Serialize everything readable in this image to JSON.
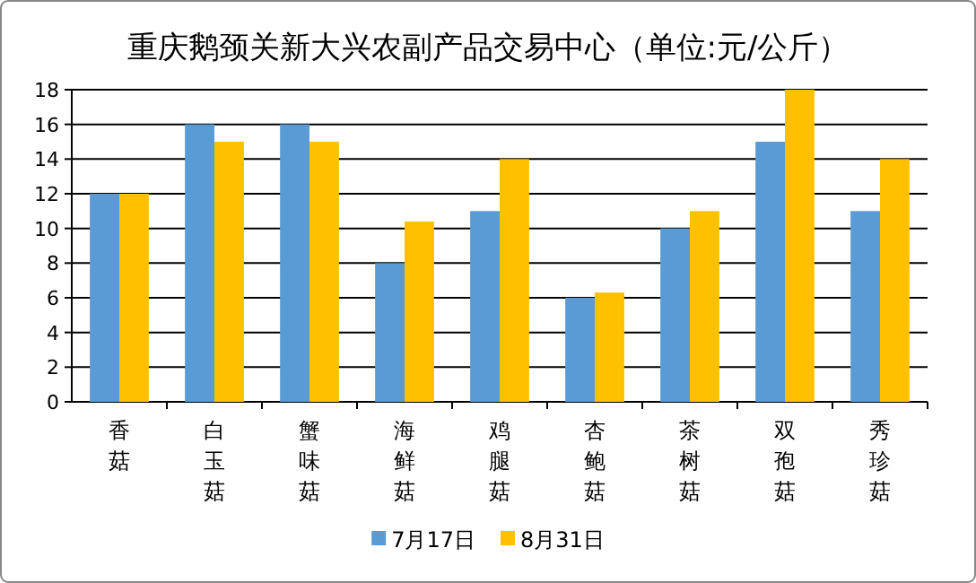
{
  "chart_data": {
    "type": "bar",
    "title": "重庆鹅颈关新大兴农副产品交易中心（单位:元/公斤）",
    "categories": [
      "香菇",
      "白玉菇",
      "蟹味菇",
      "海鲜菇",
      "鸡腿菇",
      "杏鲍菇",
      "茶树菇",
      "双孢菇",
      "秀珍菇"
    ],
    "series": [
      {
        "name": "7月17日",
        "color": "#5b9bd5",
        "values": [
          12,
          16,
          16,
          8,
          11,
          6,
          10,
          15,
          11
        ]
      },
      {
        "name": "8月31日",
        "color": "#ffc000",
        "values": [
          12,
          15,
          15,
          10.4,
          14,
          6.3,
          11,
          18,
          14
        ]
      }
    ],
    "ylim": [
      0,
      18
    ],
    "yticks": [
      0,
      2,
      4,
      6,
      8,
      10,
      12,
      14,
      16,
      18
    ],
    "grid": "y",
    "legend": "bottom"
  }
}
